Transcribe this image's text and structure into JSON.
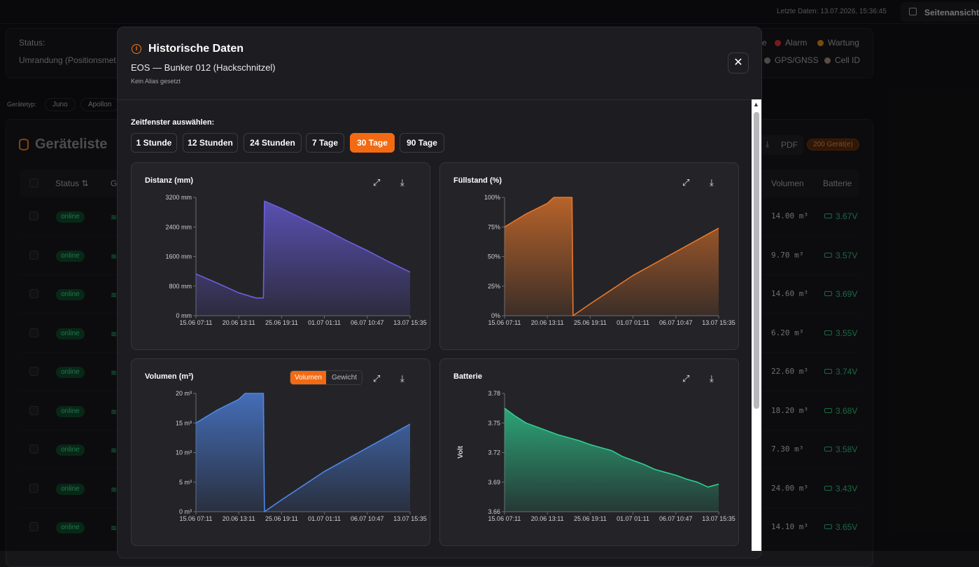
{
  "topbar": {
    "last_data": "Letzte Daten: 13.07.2026, 15:36:45",
    "page_view": "Seitenansicht"
  },
  "background": {
    "status_label": "Status:",
    "border_label": "Umrandung (Positionsmet",
    "legend_alarm": "Alarm",
    "legend_wartung": "Wartung",
    "legend_gps": "GPS/GNSS",
    "legend_cell": "Cell ID",
    "devicetype_label": "Gerätetyp:",
    "filter_juno": "Juno",
    "filter_apollon": "Apollon",
    "list_title": "Geräteliste",
    "pdf_label": "PDF",
    "count_badge": "200 Gerät(e)",
    "col_status": "Status",
    "col_g": "G",
    "col_volumen": "Volumen",
    "col_batterie": "Batterie",
    "rows": [
      {
        "status": "online",
        "volume": "14.00 m³",
        "battery": "3.67V"
      },
      {
        "status": "online",
        "volume": "9.70 m³",
        "battery": "3.57V"
      },
      {
        "status": "online",
        "volume": "14.60 m³",
        "battery": "3.69V"
      },
      {
        "status": "online",
        "volume": "6.20 m³",
        "battery": "3.55V"
      },
      {
        "status": "online",
        "volume": "22.60 m³",
        "battery": "3.74V"
      },
      {
        "status": "online",
        "volume": "18.20 m³",
        "battery": "3.68V"
      },
      {
        "status": "online",
        "volume": "7.30 m³",
        "battery": "3.58V"
      },
      {
        "status": "online",
        "volume": "24.00 m³",
        "battery": "3.43V"
      },
      {
        "status": "online",
        "volume": "14.10 m³",
        "battery": "3.65V"
      }
    ]
  },
  "modal": {
    "title": "Historische Daten",
    "subtitle": "EOS — Bunker 012 (Hackschnitzel)",
    "alias": "Kein Alias gesetzt",
    "window_label": "Zeitfenster auswählen:",
    "time_buttons": [
      "1 Stunde",
      "12 Stunden",
      "24 Stunden",
      "7 Tage",
      "30 Tage",
      "90 Tage"
    ],
    "active_time": "30 Tage",
    "toggle": {
      "volumen": "Volumen",
      "gewicht": "Gewicht",
      "active": "Volumen"
    }
  },
  "colors": {
    "accent": "#f36a12",
    "distance": "#6b5fe0",
    "fill": "#e8772a",
    "volume": "#4f86e8",
    "battery": "#2fcf92"
  },
  "chart_data": [
    {
      "type": "area",
      "title": "Distanz (mm)",
      "ylabel": "",
      "unit": "mm",
      "yticks": [
        "0 mm",
        "800 mm",
        "1600 mm",
        "2400 mm",
        "3200 mm"
      ],
      "ylim": [
        0,
        3200
      ],
      "xticks": [
        "15.06 07:11",
        "20.06 13:11",
        "25.06 19:11",
        "01.07 01:11",
        "06.07 10:47",
        "13.07 15:35"
      ],
      "x": [
        0,
        0.1,
        0.2,
        0.28,
        0.315,
        0.32,
        0.4,
        0.5,
        0.6,
        0.7,
        0.8,
        0.9,
        1.0
      ],
      "values": [
        1130,
        880,
        620,
        480,
        480,
        3100,
        2900,
        2620,
        2340,
        2040,
        1760,
        1460,
        1180
      ]
    },
    {
      "type": "area",
      "title": "Füllstand (%)",
      "ylabel": "",
      "unit": "%",
      "yticks": [
        "0%",
        "25%",
        "50%",
        "75%",
        "100%"
      ],
      "ylim": [
        0,
        100
      ],
      "xticks": [
        "15.06 07:11",
        "20.06 13:11",
        "25.06 19:11",
        "01.07 01:11",
        "06.07 10:47",
        "13.07 15:35"
      ],
      "x": [
        0,
        0.1,
        0.2,
        0.23,
        0.315,
        0.32,
        0.4,
        0.5,
        0.6,
        0.7,
        0.8,
        0.9,
        1.0
      ],
      "values": [
        75,
        86,
        95,
        100,
        100,
        0,
        10,
        22,
        34,
        44,
        54,
        64,
        74
      ]
    },
    {
      "type": "area",
      "title": "Volumen (m³)",
      "ylabel": "",
      "unit": "m³",
      "yticks": [
        "0 m³",
        "5 m³",
        "10 m³",
        "15 m³",
        "20 m³"
      ],
      "ylim": [
        0,
        20
      ],
      "xticks": [
        "15.06 07:11",
        "20.06 13:11",
        "25.06 19:11",
        "01.07 01:11",
        "06.07 10:47",
        "13.07 15:35"
      ],
      "x": [
        0,
        0.1,
        0.2,
        0.23,
        0.315,
        0.32,
        0.4,
        0.5,
        0.6,
        0.7,
        0.8,
        0.9,
        1.0
      ],
      "values": [
        15.0,
        17.2,
        19.0,
        20,
        20,
        0,
        2.0,
        4.4,
        6.8,
        8.8,
        10.8,
        12.8,
        14.8
      ]
    },
    {
      "type": "area",
      "title": "Batterie",
      "ylabel": "Volt",
      "unit": "V",
      "yticks": [
        "3.66",
        "3.69",
        "3.72",
        "3.75",
        "3.78"
      ],
      "ylim": [
        3.66,
        3.78
      ],
      "xticks": [
        "15.06 07:11",
        "20.06 13:11",
        "25.06 19:11",
        "01.07 01:11",
        "06.07 10:47",
        "13.07 15:35"
      ],
      "x": [
        0,
        0.05,
        0.1,
        0.15,
        0.2,
        0.25,
        0.3,
        0.35,
        0.4,
        0.45,
        0.5,
        0.55,
        0.6,
        0.65,
        0.7,
        0.75,
        0.8,
        0.85,
        0.9,
        0.95,
        1.0
      ],
      "values": [
        3.765,
        3.757,
        3.75,
        3.746,
        3.742,
        3.738,
        3.735,
        3.732,
        3.728,
        3.725,
        3.722,
        3.716,
        3.712,
        3.708,
        3.703,
        3.7,
        3.697,
        3.693,
        3.69,
        3.685,
        3.688
      ]
    }
  ]
}
